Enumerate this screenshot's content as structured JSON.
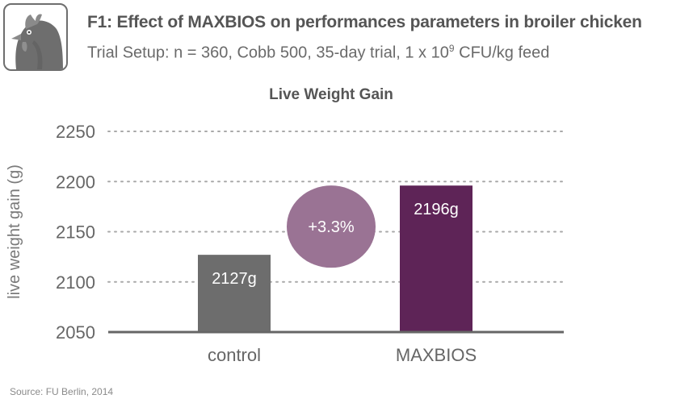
{
  "header": {
    "title": "F1: Effect of MAXBIOS on performances parameters in broiler chicken",
    "subtitle_prefix": "Trial Setup: n = 360, Cobb 500, 35-day trial, 1 x 10",
    "subtitle_exp": "9",
    "subtitle_suffix": " CFU/kg feed"
  },
  "logo": {
    "icon": "chicken-head-icon"
  },
  "source": "Source: FU Berlin, 2014",
  "colors": {
    "control": "#6d6d6d",
    "maxbios": "#5e2457",
    "bubble": "#9a7394",
    "axis": "#666666",
    "grid": "#a9a9a9"
  },
  "chart_data": {
    "type": "bar",
    "title": "Live Weight Gain",
    "ylabel": "live weight gain (g)",
    "xlabel": "",
    "categories": [
      "control",
      "MAXBIOS"
    ],
    "values": [
      2127,
      2196
    ],
    "data_labels": [
      "2127g",
      "2196g"
    ],
    "ylim": [
      2050,
      2250
    ],
    "yticks": [
      2050,
      2100,
      2150,
      2200,
      2250
    ],
    "grid": true,
    "annotation": "+3.3%"
  }
}
